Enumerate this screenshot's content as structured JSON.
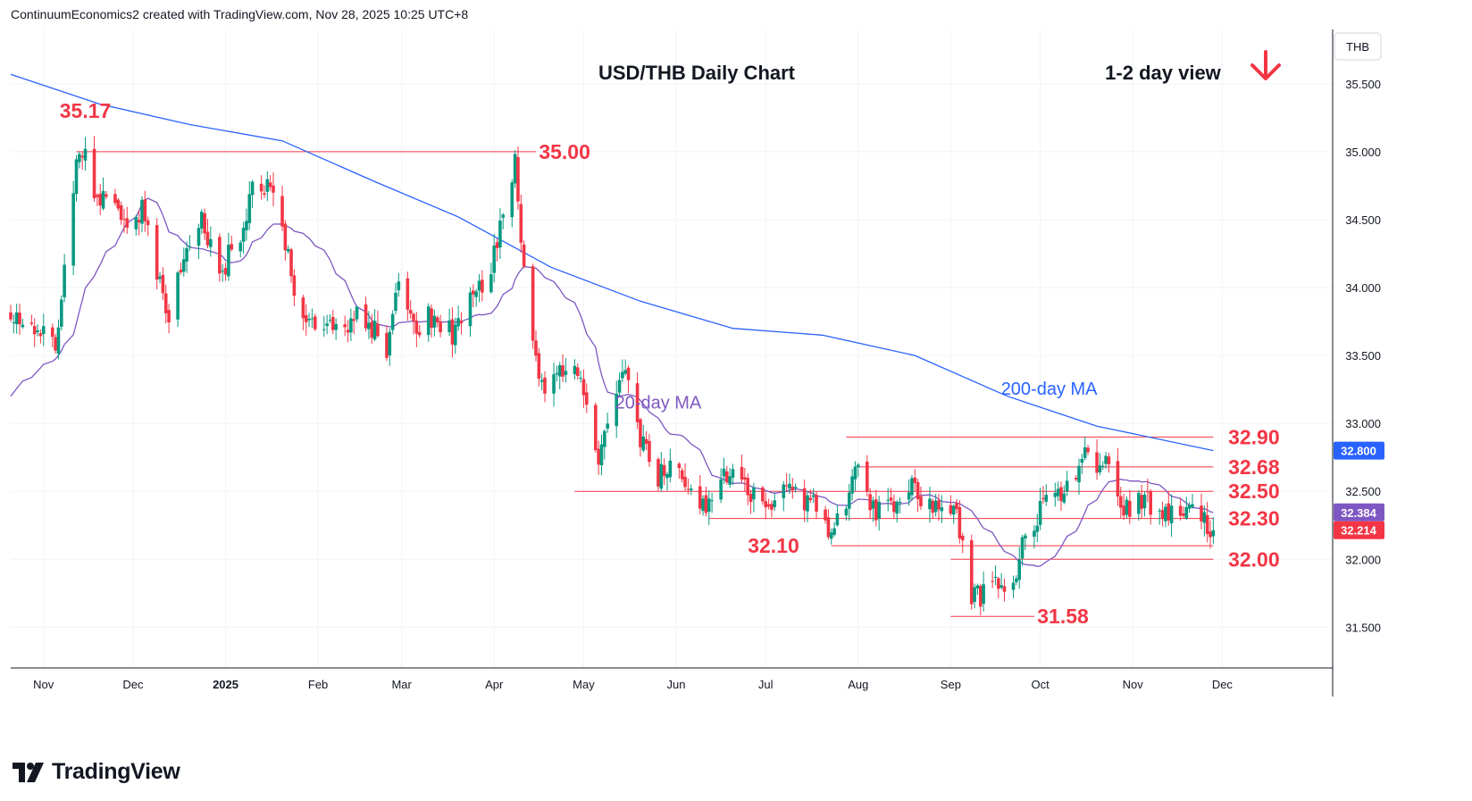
{
  "header": {
    "attribution": "ContinuumEconomics2 created with TradingView.com, Nov 28, 2025 10:25 UTC+8"
  },
  "footer": {
    "brand": "TradingView"
  },
  "chart_data": {
    "type": "candlestick",
    "title": "USD/THB Daily Chart",
    "view_label": "1-2 day view",
    "view_direction": "down",
    "currency": "THB",
    "ylim": [
      31.2,
      35.9
    ],
    "yticks": [
      31.5,
      32.0,
      32.5,
      33.0,
      33.5,
      34.0,
      34.5,
      35.0,
      35.5
    ],
    "ytick_labels": [
      "31.500",
      "32.000",
      "32.500",
      "33.000",
      "33.500",
      "34.000",
      "34.500",
      "35.000",
      "35.500"
    ],
    "x_labels": [
      {
        "date": "2024-11-01",
        "label": "Nov"
      },
      {
        "date": "2024-12-01",
        "label": "Dec"
      },
      {
        "date": "2025-01-01",
        "label": "2025"
      },
      {
        "date": "2025-02-01",
        "label": "Feb"
      },
      {
        "date": "2025-03-01",
        "label": "Mar"
      },
      {
        "date": "2025-04-01",
        "label": "Apr"
      },
      {
        "date": "2025-05-01",
        "label": "May"
      },
      {
        "date": "2025-06-01",
        "label": "Jun"
      },
      {
        "date": "2025-07-01",
        "label": "Jul"
      },
      {
        "date": "2025-08-01",
        "label": "Aug"
      },
      {
        "date": "2025-09-01",
        "label": "Sep"
      },
      {
        "date": "2025-10-01",
        "label": "Oct"
      },
      {
        "date": "2025-11-01",
        "label": "Nov"
      },
      {
        "date": "2025-12-01",
        "label": "Dec"
      }
    ],
    "date_range": [
      "2024-10-21",
      "2026-01-07"
    ],
    "anchors": [
      [
        "2024-10-21",
        33.8
      ],
      [
        "2024-10-28",
        33.7
      ],
      [
        "2024-11-01",
        33.65
      ],
      [
        "2024-11-05",
        33.58
      ],
      [
        "2024-11-08",
        34.2
      ],
      [
        "2024-11-12",
        34.9
      ],
      [
        "2024-11-15",
        35.1
      ],
      [
        "2024-11-19",
        34.6
      ],
      [
        "2024-11-25",
        34.7
      ],
      [
        "2024-11-29",
        34.4
      ],
      [
        "2024-12-04",
        34.6
      ],
      [
        "2024-12-09",
        34.1
      ],
      [
        "2024-12-13",
        33.8
      ],
      [
        "2024-12-18",
        34.2
      ],
      [
        "2024-12-24",
        34.55
      ],
      [
        "2024-12-30",
        34.1
      ],
      [
        "2025-01-06",
        34.4
      ],
      [
        "2025-01-10",
        34.7
      ],
      [
        "2025-01-15",
        34.75
      ],
      [
        "2025-01-20",
        34.4
      ],
      [
        "2025-01-25",
        33.9
      ],
      [
        "2025-01-31",
        33.7
      ],
      [
        "2025-02-05",
        33.8
      ],
      [
        "2025-02-10",
        33.65
      ],
      [
        "2025-02-14",
        33.9
      ],
      [
        "2025-02-19",
        33.7
      ],
      [
        "2025-02-24",
        33.55
      ],
      [
        "2025-02-28",
        34.0
      ],
      [
        "2025-03-05",
        33.7
      ],
      [
        "2025-03-12",
        33.8
      ],
      [
        "2025-03-18",
        33.65
      ],
      [
        "2025-03-24",
        33.9
      ],
      [
        "2025-03-31",
        34.1
      ],
      [
        "2025-04-04",
        34.6
      ],
      [
        "2025-04-08",
        34.9
      ],
      [
        "2025-04-11",
        34.1
      ],
      [
        "2025-04-14",
        33.6
      ],
      [
        "2025-04-18",
        33.2
      ],
      [
        "2025-04-23",
        33.4
      ],
      [
        "2025-04-28",
        33.45
      ],
      [
        "2025-05-02",
        33.2
      ],
      [
        "2025-05-06",
        32.7
      ],
      [
        "2025-05-12",
        33.2
      ],
      [
        "2025-05-15",
        33.35
      ],
      [
        "2025-05-20",
        32.9
      ],
      [
        "2025-05-26",
        32.6
      ],
      [
        "2025-05-30",
        32.7
      ],
      [
        "2025-06-04",
        32.6
      ],
      [
        "2025-06-10",
        32.4
      ],
      [
        "2025-06-16",
        32.55
      ],
      [
        "2025-06-20",
        32.7
      ],
      [
        "2025-06-26",
        32.5
      ],
      [
        "2025-07-02",
        32.4
      ],
      [
        "2025-07-08",
        32.55
      ],
      [
        "2025-07-14",
        32.45
      ],
      [
        "2025-07-18",
        32.4
      ],
      [
        "2025-07-23",
        32.2
      ],
      [
        "2025-07-28",
        32.4
      ],
      [
        "2025-08-01",
        32.7
      ],
      [
        "2025-08-06",
        32.35
      ],
      [
        "2025-08-12",
        32.4
      ],
      [
        "2025-08-18",
        32.55
      ],
      [
        "2025-08-22",
        32.4
      ],
      [
        "2025-08-28",
        32.35
      ],
      [
        "2025-09-03",
        32.3
      ],
      [
        "2025-09-08",
        31.7
      ],
      [
        "2025-09-12",
        31.75
      ],
      [
        "2025-09-18",
        31.8
      ],
      [
        "2025-09-22",
        31.85
      ],
      [
        "2025-09-26",
        32.2
      ],
      [
        "2025-10-01",
        32.35
      ],
      [
        "2025-10-06",
        32.45
      ],
      [
        "2025-10-10",
        32.55
      ],
      [
        "2025-10-15",
        32.75
      ],
      [
        "2025-10-20",
        32.7
      ],
      [
        "2025-10-24",
        32.75
      ],
      [
        "2025-10-28",
        32.35
      ],
      [
        "2025-11-03",
        32.45
      ],
      [
        "2025-11-07",
        32.4
      ],
      [
        "2025-11-12",
        32.35
      ],
      [
        "2025-11-17",
        32.4
      ],
      [
        "2025-11-21",
        32.4
      ],
      [
        "2025-11-25",
        32.28
      ],
      [
        "2025-11-28",
        32.214
      ]
    ],
    "ma200": [
      [
        "2024-10-21",
        35.57
      ],
      [
        "2024-11-20",
        35.35
      ],
      [
        "2024-12-20",
        35.2
      ],
      [
        "2025-01-20",
        35.08
      ],
      [
        "2025-02-20",
        34.78
      ],
      [
        "2025-03-20",
        34.52
      ],
      [
        "2025-04-20",
        34.15
      ],
      [
        "2025-05-20",
        33.9
      ],
      [
        "2025-06-20",
        33.7
      ],
      [
        "2025-07-20",
        33.65
      ],
      [
        "2025-08-20",
        33.5
      ],
      [
        "2025-09-20",
        33.2
      ],
      [
        "2025-10-20",
        32.98
      ],
      [
        "2025-11-28",
        32.8
      ]
    ],
    "ma20_start": 33.2,
    "series": [
      {
        "name": "200-day MA",
        "color": "#2962ff",
        "last": "32.800"
      },
      {
        "name": "20-day MA",
        "color": "#7e57c2",
        "last": "32.384"
      },
      {
        "name": "USD/THB",
        "color": "#f23645",
        "last": "32.214"
      }
    ],
    "candle_colors": {
      "up": "#089981",
      "down": "#f23645"
    },
    "levels": [
      {
        "value": 35.0,
        "label": "35.00",
        "from": "2024-11-12",
        "to": "2025-04-15",
        "label_at": "2025-04-16"
      },
      {
        "value": 32.9,
        "label": "32.90",
        "from": "2025-07-28",
        "to": "2025-11-28",
        "label_at": "2025-12-03"
      },
      {
        "value": 32.68,
        "label": "32.68",
        "from": "2025-08-01",
        "to": "2025-11-28",
        "label_at": "2025-12-03"
      },
      {
        "value": 32.5,
        "label": "32.50",
        "from": "2025-04-28",
        "to": "2025-11-28",
        "label_at": "2025-12-03"
      },
      {
        "value": 32.3,
        "label": "32.30",
        "from": "2025-06-12",
        "to": "2025-11-28",
        "label_at": "2025-12-03"
      },
      {
        "value": 32.1,
        "label": "32.10",
        "from": "2025-07-23",
        "to": "2025-11-28",
        "label_at": "2025-06-25"
      },
      {
        "value": 32.0,
        "label": "32.00",
        "from": "2025-09-01",
        "to": "2025-11-28",
        "label_at": "2025-12-03"
      },
      {
        "value": 31.58,
        "label": "31.58",
        "from": "2025-09-01",
        "to": "2025-09-29",
        "label_at": "2025-09-30"
      }
    ],
    "annotations": [
      {
        "text": "35.17",
        "date": "2024-11-15",
        "value": 35.17
      },
      {
        "text": "20-day MA",
        "date": "2025-05-26",
        "value": 33.15
      },
      {
        "text": "200-day MA",
        "date": "2025-10-04",
        "value": 33.25
      }
    ],
    "grid": true
  }
}
